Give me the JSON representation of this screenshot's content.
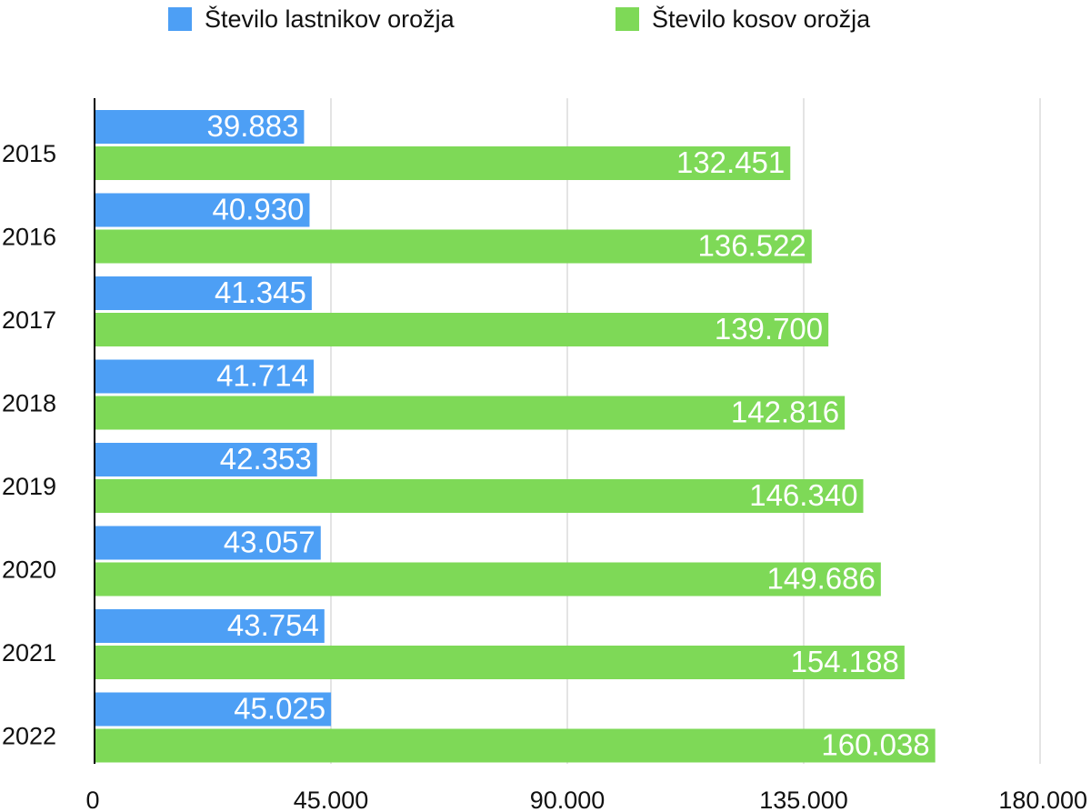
{
  "chart_data": {
    "type": "bar",
    "orientation": "horizontal",
    "title": "",
    "xlabel": "",
    "ylabel": "",
    "categories": [
      "2015",
      "2016",
      "2017",
      "2018",
      "2019",
      "2020",
      "2021",
      "2022"
    ],
    "series": [
      {
        "name": "Število lastnikov orožja",
        "color": "#4d9ff5",
        "values": [
          39883,
          40930,
          41345,
          41714,
          42353,
          43057,
          43754,
          45025
        ],
        "labels": [
          "39.883",
          "40.930",
          "41.345",
          "41.714",
          "42.353",
          "43.057",
          "43.754",
          "45.025"
        ]
      },
      {
        "name": "Število kosov orožja",
        "color": "#7ed957",
        "values": [
          132451,
          136522,
          139700,
          142816,
          146340,
          149686,
          154188,
          160038
        ],
        "labels": [
          "132.451",
          "136.522",
          "139.700",
          "142.816",
          "146.340",
          "149.686",
          "154.188",
          "160.038"
        ]
      }
    ],
    "xlim": [
      0,
      180000
    ],
    "x_ticks": [
      0,
      45000,
      90000,
      135000,
      180000
    ],
    "x_tick_labels": [
      "0",
      "45.000",
      "90.000",
      "135.000",
      "180.000"
    ],
    "grid": true,
    "legend_position": "top"
  }
}
